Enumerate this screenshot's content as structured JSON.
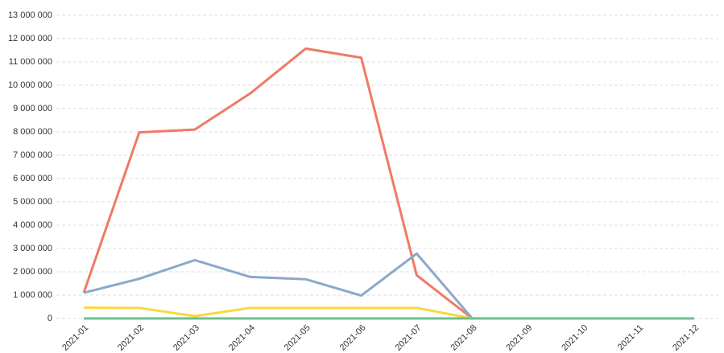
{
  "chart_data": {
    "type": "line",
    "categories": [
      "2021-01",
      "2021-02",
      "2021-03",
      "2021-04",
      "2021-05",
      "2021-06",
      "2021-07",
      "2021-08",
      "2021-09",
      "2021-10",
      "2021-11",
      "2021-12"
    ],
    "series": [
      {
        "color": "#f07a65",
        "values": [
          1100000,
          7980000,
          8100000,
          9650000,
          11570000,
          11180000,
          1850000,
          0,
          null,
          null,
          null,
          null
        ]
      },
      {
        "color": "#8aa9c8",
        "values": [
          1100000,
          1700000,
          2500000,
          1780000,
          1680000,
          980000,
          2780000,
          0,
          null,
          null,
          null,
          null
        ]
      },
      {
        "color": "#f8d840",
        "values": [
          460000,
          450000,
          100000,
          450000,
          450000,
          450000,
          450000,
          0,
          null,
          null,
          null,
          null
        ]
      },
      {
        "color": "#6cc08b",
        "values": [
          0,
          0,
          0,
          0,
          0,
          0,
          0,
          0,
          0,
          0,
          0,
          0
        ]
      }
    ],
    "ylim": [
      0,
      13000000
    ],
    "yticks": [
      0,
      {
        "value": 1000000,
        "label": "1 000 000"
      },
      {
        "value": 2000000,
        "label": "2 000 000"
      },
      {
        "value": 3000000,
        "label": "3 000 000"
      },
      {
        "value": 4000000,
        "label": "4 000 000"
      },
      {
        "value": 5000000,
        "label": "5 000 000"
      },
      {
        "value": 6000000,
        "label": "6 000 000"
      },
      {
        "value": 7000000,
        "label": "7 000 000"
      },
      {
        "value": 8000000,
        "label": "8 000 000"
      },
      {
        "value": 9000000,
        "label": "9 000 000"
      },
      {
        "value": 10000000,
        "label": "10 000 000"
      },
      {
        "value": 11000000,
        "label": "11 000 000"
      },
      {
        "value": 12000000,
        "label": "12 000 000"
      },
      {
        "value": 13000000,
        "label": "13 000 000"
      }
    ],
    "grid": true
  }
}
